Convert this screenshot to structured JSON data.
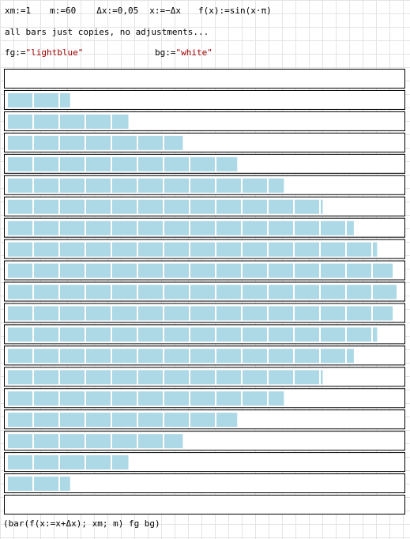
{
  "definitions": [
    "xm:=1",
    "m:=60",
    "Δx:=0,05",
    "x:=−Δx",
    "f(x):=sin(x·π)"
  ],
  "comment": "all bars just copies, no adjustments...",
  "colors": [
    {
      "name": "fg:=",
      "value": "\"lightblue\""
    },
    {
      "name": "bg:=",
      "value": "\"white\""
    }
  ],
  "bars": {
    "values": [
      0,
      0.16,
      0.31,
      0.45,
      0.59,
      0.71,
      0.81,
      0.89,
      0.95,
      0.99,
      1,
      0.99,
      0.95,
      0.89,
      0.81,
      0.71,
      0.59,
      0.45,
      0.31,
      0.16,
      0
    ],
    "xlim": [
      0,
      1
    ],
    "color": "#add8e6"
  },
  "expression": "(bar(f(x:=x+Δx); xm; m) fg bg)"
}
